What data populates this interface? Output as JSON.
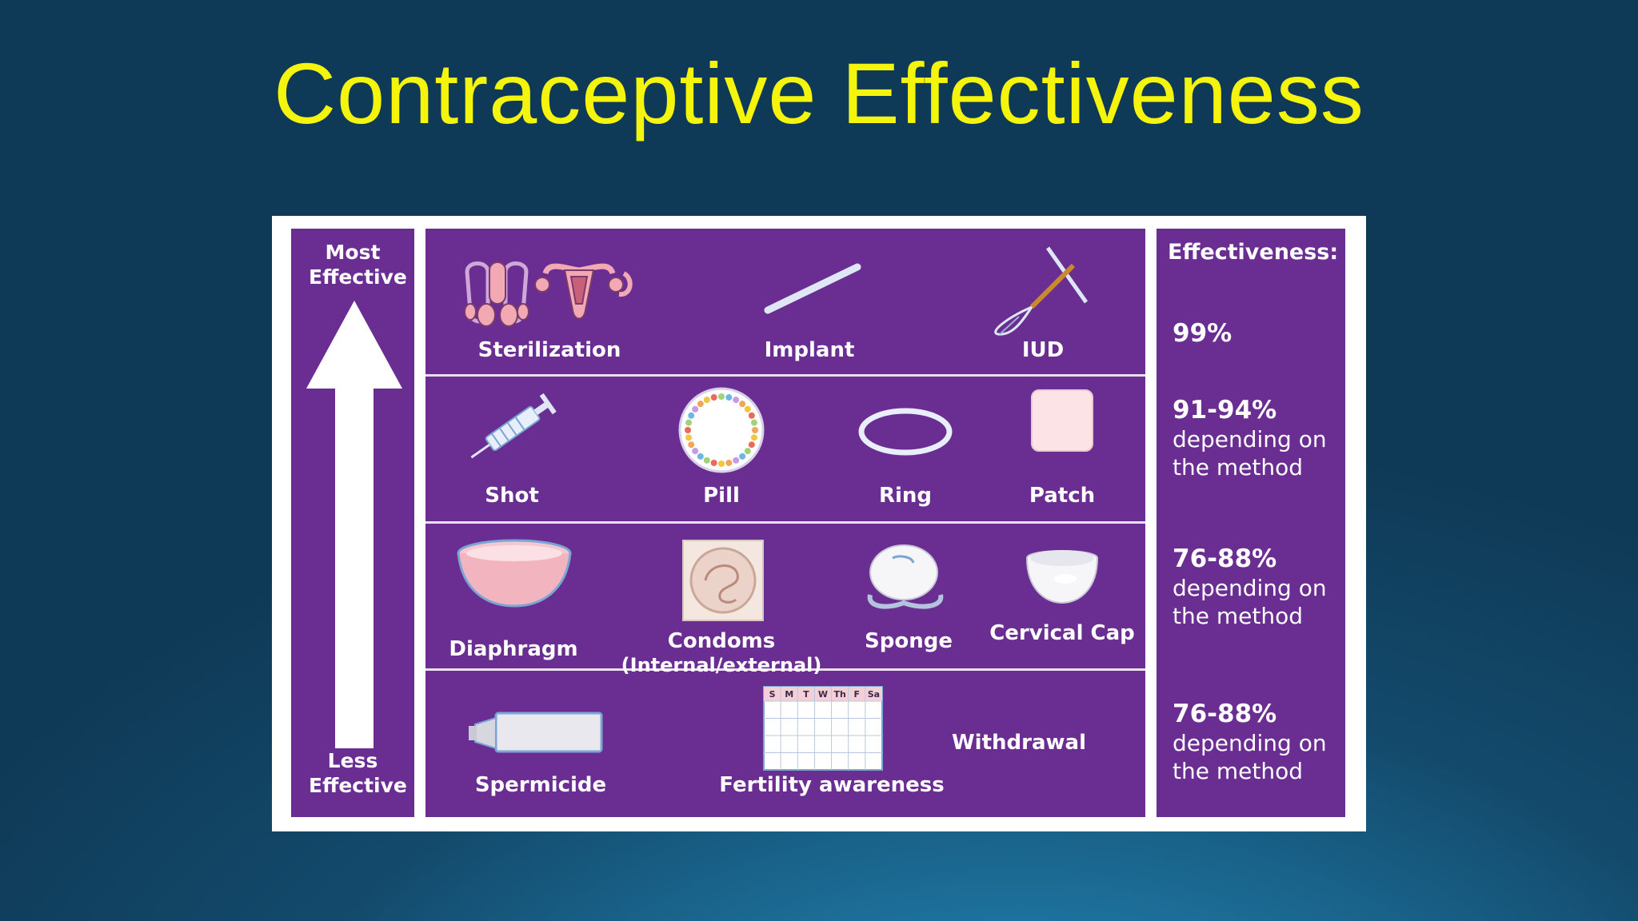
{
  "slide": {
    "title": "Contraceptive Effectiveness"
  },
  "scale": {
    "top_label": "Most Effective",
    "bottom_label": "Less Effective"
  },
  "effectiveness": {
    "heading": "Effectiveness:",
    "tiers": [
      {
        "value": "99%",
        "note_line1": "",
        "note_line2": ""
      },
      {
        "value": "91-94%",
        "note_line1": "depending on",
        "note_line2": "the method"
      },
      {
        "value": "76-88%",
        "note_line1": "depending on",
        "note_line2": "the method"
      },
      {
        "value": "76-88%",
        "note_line1": "depending on",
        "note_line2": "the method"
      }
    ]
  },
  "tiers": [
    {
      "methods": [
        "Sterilization",
        "Implant",
        "IUD"
      ]
    },
    {
      "methods": [
        "Shot",
        "Pill",
        "Ring",
        "Patch"
      ]
    },
    {
      "methods": [
        "Diaphragm",
        "Condoms",
        "Sponge",
        "Cervical Cap"
      ],
      "condoms_sub": "(Internal/external)"
    },
    {
      "methods": [
        "Spermicide",
        "Fertility awareness",
        "Withdrawal"
      ]
    }
  ],
  "calendar_days": [
    "S",
    "M",
    "T",
    "W",
    "Th",
    "F",
    "Sa"
  ],
  "colors": {
    "panel_purple": "#6a2d92",
    "title_yellow": "#f4f40c",
    "background_blue": "#134a6c"
  }
}
